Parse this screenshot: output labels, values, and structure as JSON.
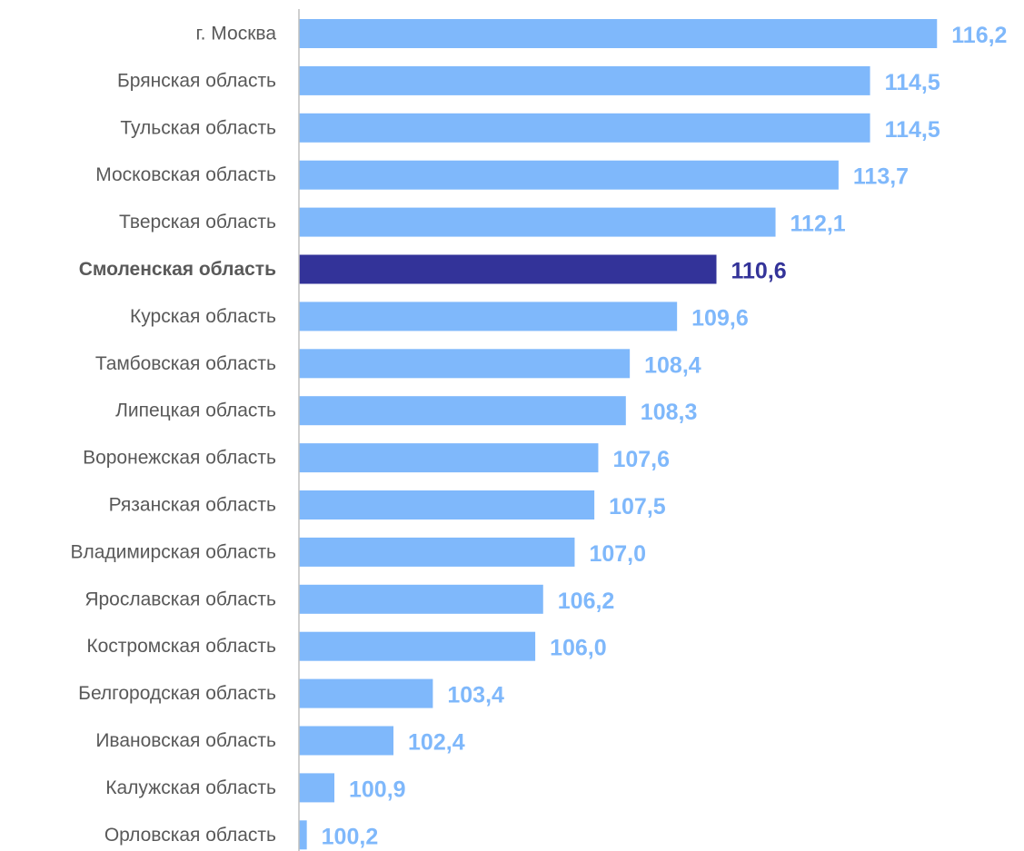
{
  "chart_data": {
    "type": "bar",
    "orientation": "horizontal",
    "title": "",
    "xlabel": "",
    "ylabel": "",
    "grid": false,
    "legend": "none",
    "xlim": [
      100,
      117
    ],
    "categories": [
      "г. Москва",
      "Брянская область",
      "Тульская область",
      "Московская область",
      "Тверская область",
      "Смоленская область",
      "Курская область",
      "Тамбовская область",
      "Липецкая область",
      "Воронежская область",
      "Рязанская область",
      "Владимирская область",
      "Ярославская область",
      "Костромская область",
      "Белгородская область",
      "Ивановская область",
      "Калужская область",
      "Орловская область"
    ],
    "values": [
      116.2,
      114.5,
      114.5,
      113.7,
      112.1,
      110.6,
      109.6,
      108.4,
      108.3,
      107.6,
      107.5,
      107.0,
      106.2,
      106.0,
      103.4,
      102.4,
      100.9,
      100.2
    ],
    "value_labels": [
      "116,2",
      "114,5",
      "114,5",
      "113,7",
      "112,1",
      "110,6",
      "109,6",
      "108,4",
      "108,3",
      "107,6",
      "107,5",
      "107,0",
      "106,2",
      "106,0",
      "103,4",
      "102,4",
      "100,9",
      "100,2"
    ],
    "highlight_category": "Смоленская область",
    "colors": {
      "bar": "#7fb8fb",
      "highlight_bar": "#333399",
      "value_label": "#7fb8fb",
      "highlight_value_label": "#333399",
      "category_label": "#595959",
      "axis": "#bfbfbf"
    }
  }
}
